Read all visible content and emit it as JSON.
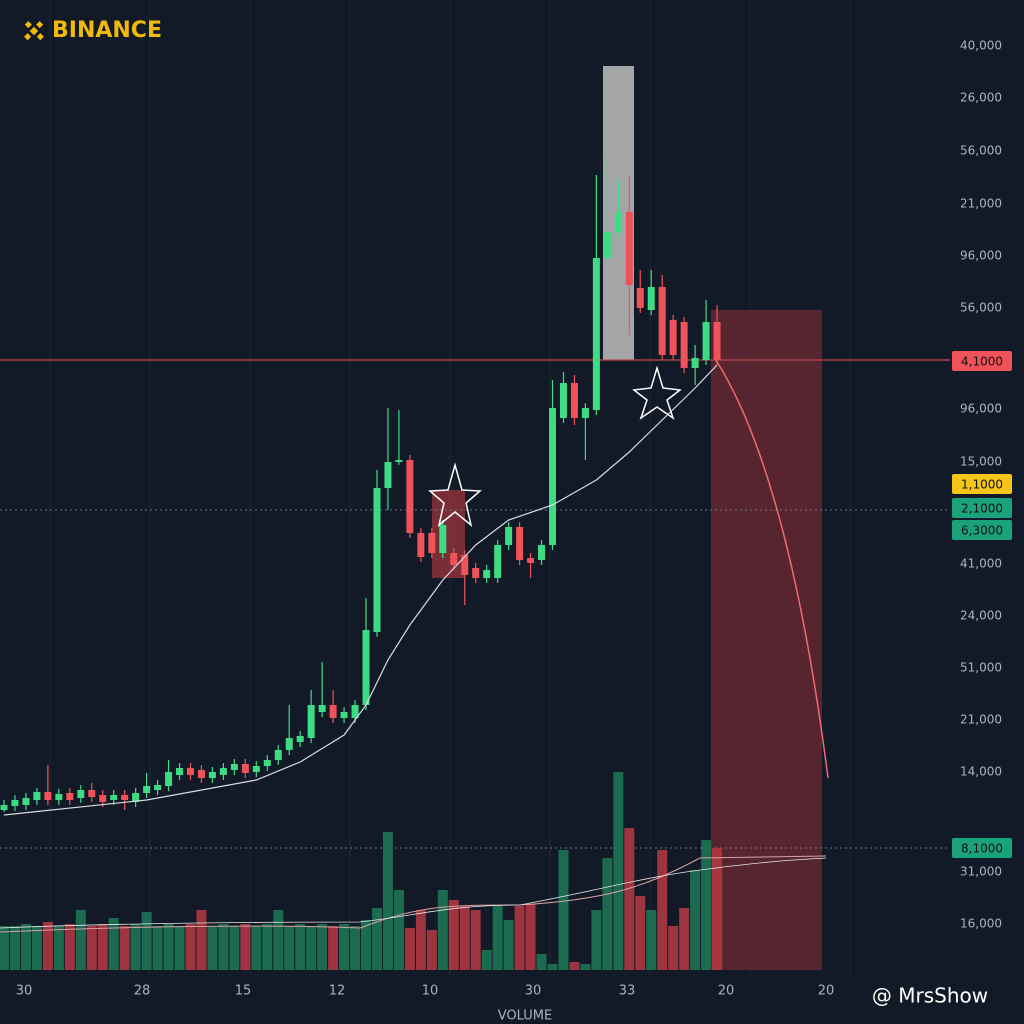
{
  "chart_data": {
    "type": "candlestick",
    "logo": "BINANCE",
    "watermark": "@ MrsShow",
    "volume_label": "VOLUME",
    "up_color": "#3ddc84",
    "down_color": "#f0525a",
    "ylim": [
      0,
      100
    ],
    "vlim": [
      0,
      100
    ],
    "price_labels": [
      "40,000",
      "26,000",
      "56,000",
      "21,000",
      "96,000",
      "56,000",
      "96,000",
      "15,000",
      "41,000",
      "24,000",
      "51,000",
      "21,000",
      "14,000",
      "31,000",
      "16,000"
    ],
    "badges": [
      {
        "label": "4,1000",
        "color": "#f0525a"
      },
      {
        "label": "1,1000",
        "color": "#f5c518"
      },
      {
        "label": "2,1000",
        "color": "#1aa37a"
      },
      {
        "label": "6,3000",
        "color": "#1aa37a"
      },
      {
        "label": "8,1000",
        "color": "#1aa37a"
      }
    ],
    "x_labels": [
      "30",
      "28",
      "15",
      "12",
      "10",
      "30",
      "33",
      "20",
      "20"
    ],
    "candles": [
      {
        "o": 19,
        "h": 20,
        "l": 18.8,
        "c": 19.5
      },
      {
        "o": 19.4,
        "h": 20.5,
        "l": 18.9,
        "c": 20
      },
      {
        "o": 19.5,
        "h": 20.7,
        "l": 19,
        "c": 20.2
      },
      {
        "o": 20,
        "h": 21.2,
        "l": 19.5,
        "c": 20.8
      },
      {
        "o": 20.8,
        "h": 23.5,
        "l": 19.5,
        "c": 20
      },
      {
        "o": 20,
        "h": 21.1,
        "l": 19.5,
        "c": 20.6
      },
      {
        "o": 20.7,
        "h": 21.2,
        "l": 19.5,
        "c": 20
      },
      {
        "o": 20.2,
        "h": 21.5,
        "l": 19.7,
        "c": 21
      },
      {
        "o": 21,
        "h": 21.7,
        "l": 19.8,
        "c": 20.3
      },
      {
        "o": 20.5,
        "h": 21,
        "l": 19.3,
        "c": 19.8
      },
      {
        "o": 20,
        "h": 21,
        "l": 19.5,
        "c": 20.5
      },
      {
        "o": 20.5,
        "h": 21,
        "l": 19,
        "c": 20
      },
      {
        "o": 19.8,
        "h": 21.2,
        "l": 19.3,
        "c": 20.7
      },
      {
        "o": 20.7,
        "h": 22.7,
        "l": 20.2,
        "c": 21.4
      },
      {
        "o": 21,
        "h": 22,
        "l": 20.5,
        "c": 21.5
      },
      {
        "o": 21.4,
        "h": 24,
        "l": 20.9,
        "c": 22.8
      },
      {
        "o": 22.5,
        "h": 23.7,
        "l": 22,
        "c": 23.2
      },
      {
        "o": 23.2,
        "h": 23.7,
        "l": 22,
        "c": 22.5
      },
      {
        "o": 23,
        "h": 23.5,
        "l": 21.7,
        "c": 22.2
      },
      {
        "o": 22.2,
        "h": 23.3,
        "l": 21.7,
        "c": 22.8
      },
      {
        "o": 22.5,
        "h": 23.7,
        "l": 22,
        "c": 23.2
      },
      {
        "o": 23,
        "h": 24.1,
        "l": 22.5,
        "c": 23.6
      },
      {
        "o": 23.6,
        "h": 24.1,
        "l": 22.2,
        "c": 22.7
      },
      {
        "o": 22.8,
        "h": 23.9,
        "l": 22.3,
        "c": 23.4
      },
      {
        "o": 23.4,
        "h": 24.5,
        "l": 22.9,
        "c": 24
      },
      {
        "o": 24,
        "h": 25.5,
        "l": 23.5,
        "c": 25
      },
      {
        "o": 25,
        "h": 29.5,
        "l": 24.5,
        "c": 26.2
      },
      {
        "o": 25.8,
        "h": 26.9,
        "l": 25.3,
        "c": 26.4
      },
      {
        "o": 26.2,
        "h": 31,
        "l": 25.7,
        "c": 29.5
      },
      {
        "o": 28.8,
        "h": 33.8,
        "l": 28.3,
        "c": 29.5
      },
      {
        "o": 29.5,
        "h": 31,
        "l": 27.7,
        "c": 28.2
      },
      {
        "o": 28.2,
        "h": 29.3,
        "l": 27.7,
        "c": 28.8
      },
      {
        "o": 28.2,
        "h": 30,
        "l": 27.7,
        "c": 29.5
      },
      {
        "o": 29.5,
        "h": 40.2,
        "l": 29,
        "c": 37
      },
      {
        "o": 36.8,
        "h": 53,
        "l": 36.3,
        "c": 51.2
      },
      {
        "o": 51.2,
        "h": 59.2,
        "l": 49,
        "c": 53.8
      },
      {
        "o": 53.8,
        "h": 59,
        "l": 53.5,
        "c": 54
      },
      {
        "o": 54,
        "h": 54.5,
        "l": 46.2,
        "c": 46.7
      },
      {
        "o": 46.7,
        "h": 47.2,
        "l": 43.8,
        "c": 44.3
      },
      {
        "o": 46.7,
        "h": 47.2,
        "l": 44.2,
        "c": 44.7
      },
      {
        "o": 44.7,
        "h": 48,
        "l": 44.2,
        "c": 47.5
      },
      {
        "o": 44.7,
        "h": 45.2,
        "l": 43,
        "c": 43.5
      },
      {
        "o": 44.5,
        "h": 45,
        "l": 39.5,
        "c": 42.5
      },
      {
        "o": 43.2,
        "h": 43.7,
        "l": 41.7,
        "c": 42.2
      },
      {
        "o": 42.2,
        "h": 43.5,
        "l": 41.7,
        "c": 43
      },
      {
        "o": 42.2,
        "h": 46,
        "l": 41.7,
        "c": 45.5
      },
      {
        "o": 45.5,
        "h": 47.8,
        "l": 45,
        "c": 47.3
      },
      {
        "o": 47.3,
        "h": 47.8,
        "l": 43.5,
        "c": 44
      },
      {
        "o": 44.2,
        "h": 44.7,
        "l": 42.2,
        "c": 43.7
      },
      {
        "o": 44,
        "h": 46,
        "l": 43.5,
        "c": 45.5
      },
      {
        "o": 45.5,
        "h": 62,
        "l": 45,
        "c": 59.2
      },
      {
        "o": 58.2,
        "h": 62.8,
        "l": 57.7,
        "c": 61.7
      },
      {
        "o": 61.7,
        "h": 62.5,
        "l": 57.5,
        "c": 58.2
      },
      {
        "o": 58.2,
        "h": 59.7,
        "l": 54,
        "c": 59.2
      },
      {
        "o": 59,
        "h": 82.5,
        "l": 58.5,
        "c": 74.2
      },
      {
        "o": 74.2,
        "h": 84.2,
        "l": 73.7,
        "c": 76.8
      },
      {
        "o": 76.8,
        "h": 82,
        "l": 76.3,
        "c": 78.8
      },
      {
        "o": 78.8,
        "h": 82.5,
        "l": 66.5,
        "c": 71.5
      },
      {
        "o": 71.2,
        "h": 73,
        "l": 68.7,
        "c": 69.2
      },
      {
        "o": 69,
        "h": 73,
        "l": 68.5,
        "c": 71.3
      },
      {
        "o": 71.3,
        "h": 72.5,
        "l": 64,
        "c": 64.5
      },
      {
        "o": 68,
        "h": 68.5,
        "l": 64,
        "c": 64.5
      },
      {
        "o": 67.8,
        "h": 68.3,
        "l": 62.7,
        "c": 63.2
      },
      {
        "o": 63.2,
        "h": 65.5,
        "l": 61.5,
        "c": 64.2
      },
      {
        "o": 64,
        "h": 70,
        "l": 63.5,
        "c": 67.8
      },
      {
        "o": 67.8,
        "h": 69.5,
        "l": 63.5,
        "c": 64
      }
    ],
    "volumes": [
      22,
      22,
      23,
      22,
      24,
      22,
      23,
      30,
      22,
      23,
      26,
      22,
      23,
      29,
      22,
      23,
      22,
      23,
      30,
      22,
      23,
      22,
      23,
      22,
      23,
      30,
      22,
      23,
      22,
      23,
      22,
      23,
      22,
      25,
      31,
      69,
      40,
      21,
      30,
      20,
      40,
      35,
      32,
      30,
      10,
      32,
      25,
      32,
      33,
      8,
      3,
      60,
      4,
      3,
      30,
      56,
      99,
      71,
      37,
      30,
      60,
      22,
      31,
      50,
      65,
      61
    ],
    "ma": {
      "x": [
        0,
        13,
        23,
        27,
        31,
        33,
        35,
        37,
        40,
        43,
        46,
        50,
        54,
        57,
        60,
        63,
        65
      ],
      "values": [
        18.5,
        20,
        22,
        23.8,
        26.5,
        29.5,
        34,
        37.5,
        42,
        45.5,
        48,
        49.5,
        52,
        54.8,
        58,
        61.2,
        63.5
      ],
      "color": "#d8dce4"
    }
  }
}
